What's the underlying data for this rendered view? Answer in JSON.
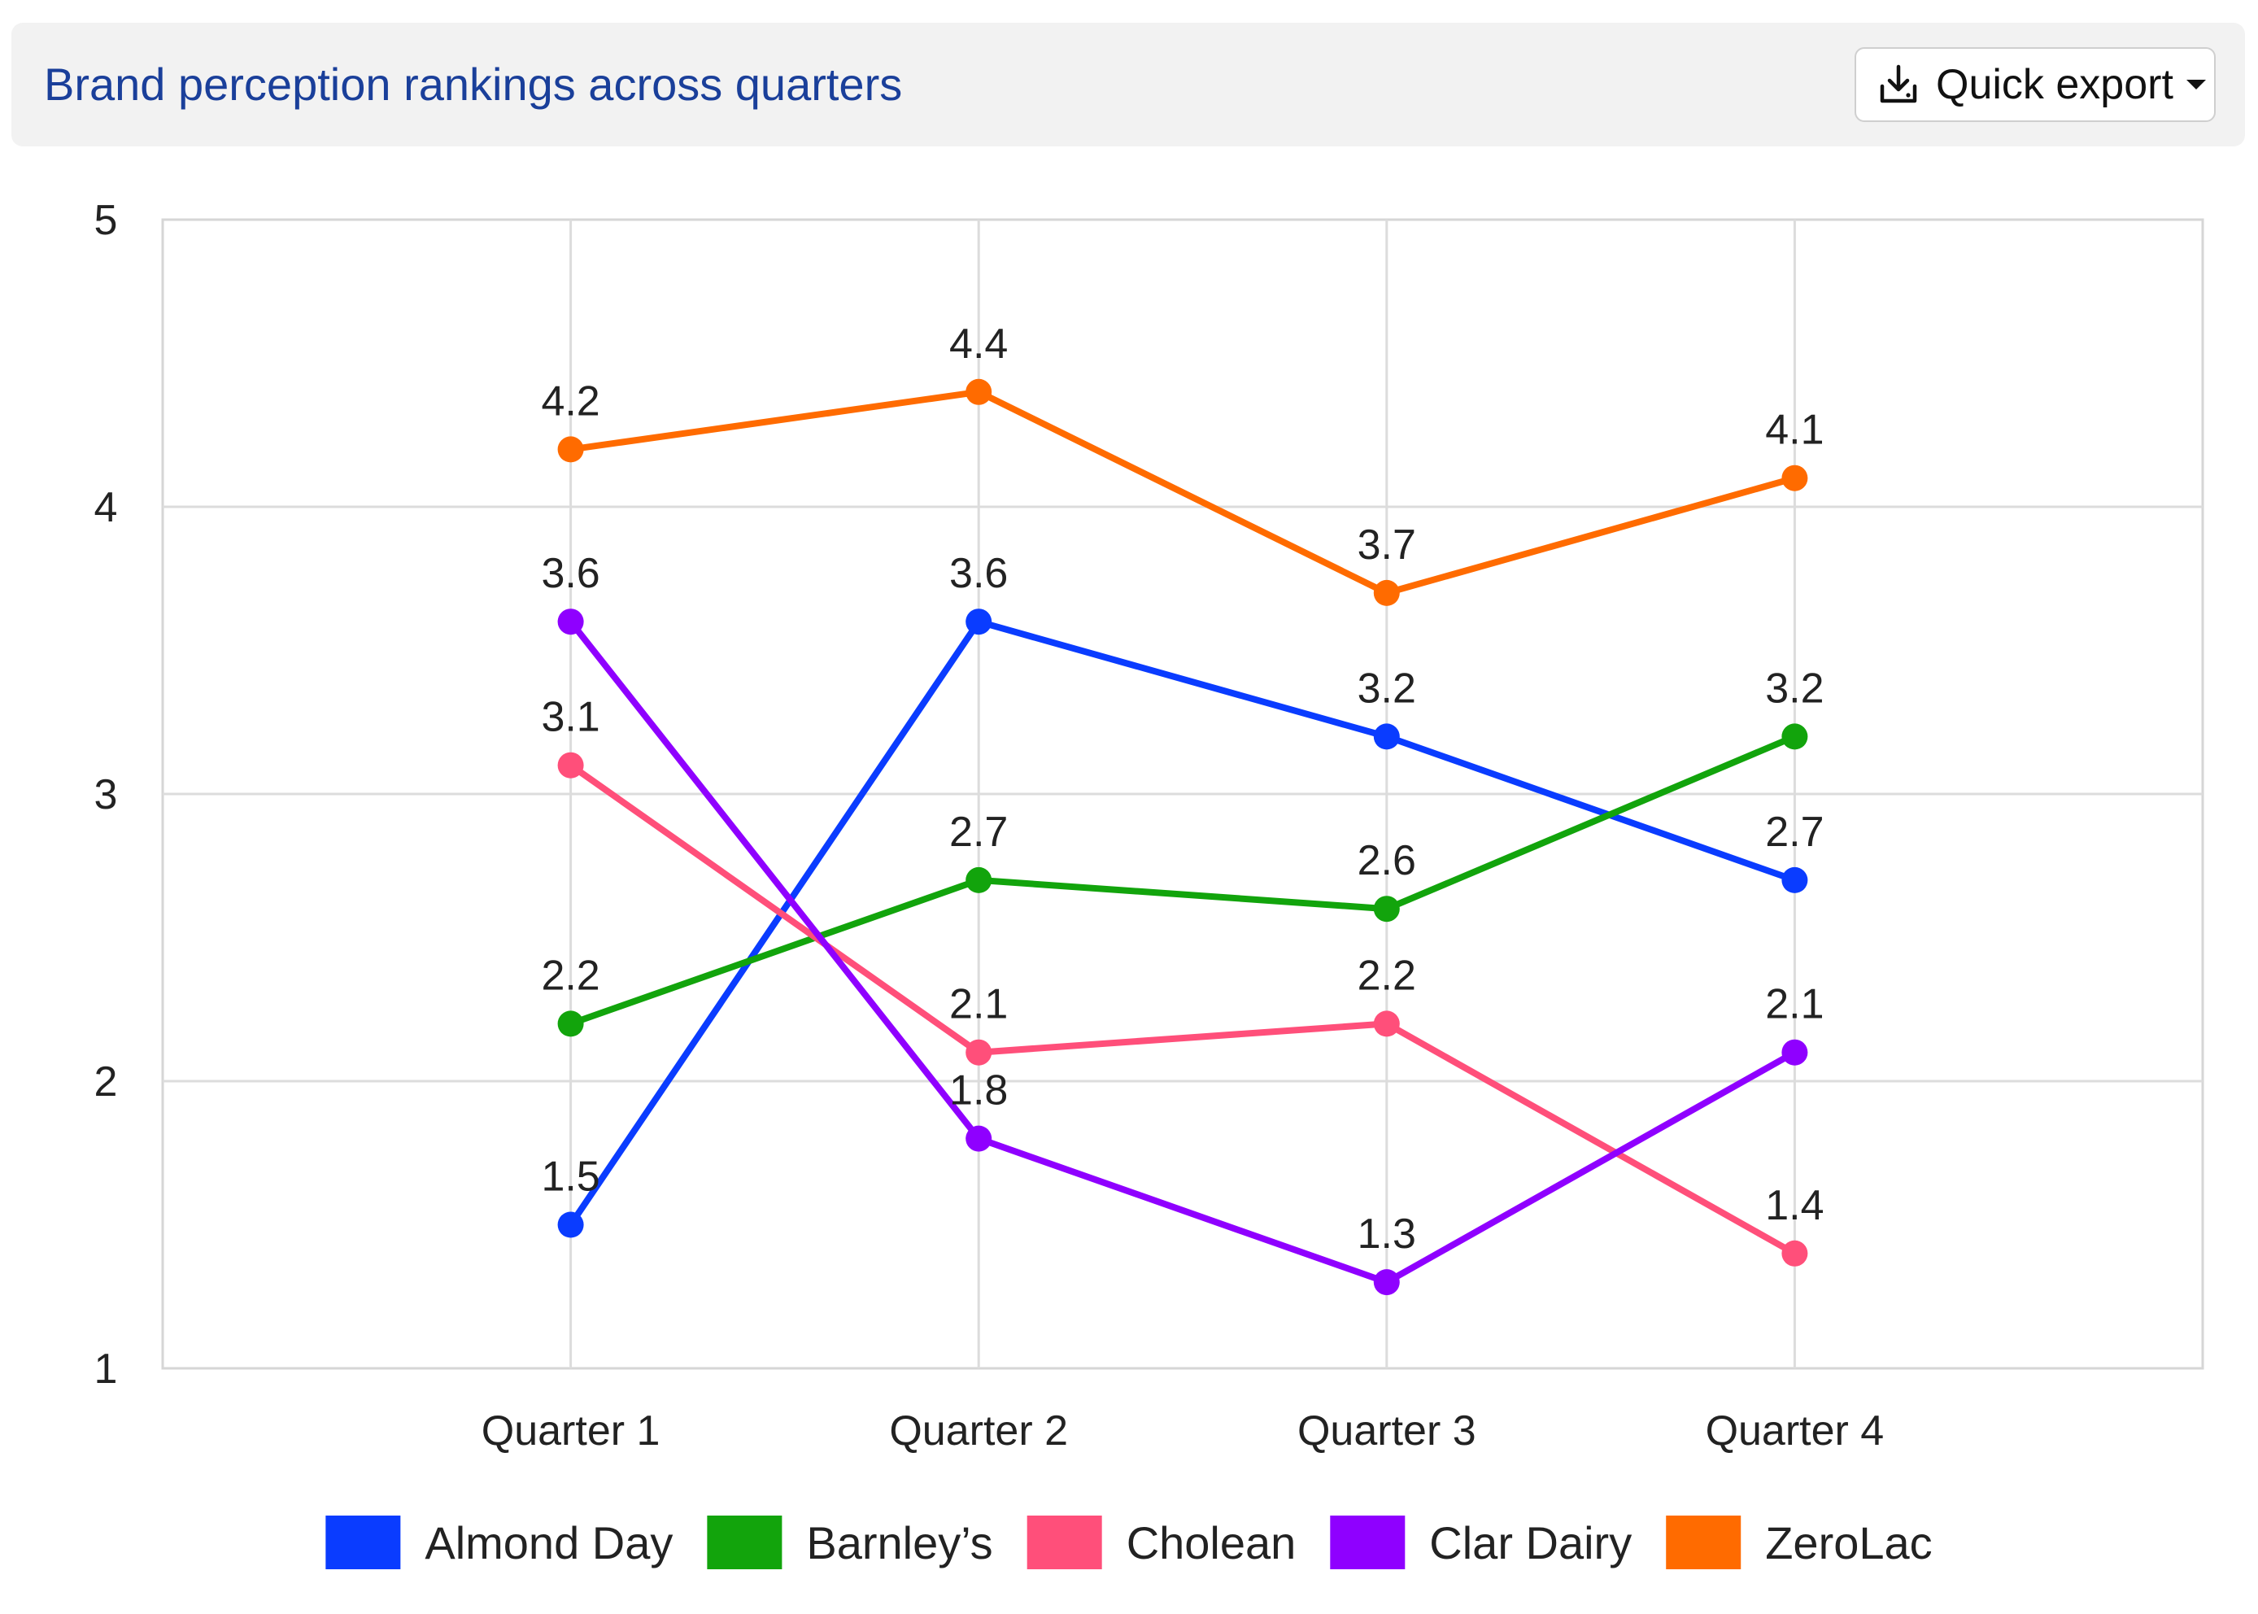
{
  "header": {
    "title": "Brand perception rankings across quarters",
    "export_label": "Quick export"
  },
  "icons": {
    "export": "download-tray-icon",
    "dropdown": "caret-down-icon"
  },
  "chart_data": {
    "type": "line",
    "title": "Brand perception rankings across quarters",
    "xlabel": "",
    "ylabel": "",
    "categories": [
      "Quarter 1",
      "Quarter 2",
      "Quarter 3",
      "Quarter 4"
    ],
    "ylim": [
      1,
      5
    ],
    "yticks": [
      "1",
      "2",
      "3",
      "4",
      "5"
    ],
    "grid": true,
    "legend_position": "bottom",
    "series": [
      {
        "name": "Almond Day",
        "color": "#0a3cff",
        "values": [
          1.5,
          3.6,
          3.2,
          2.7
        ],
        "labels": [
          "1.5",
          "3.6",
          "3.2",
          "2.7"
        ]
      },
      {
        "name": "Barnley’s",
        "color": "#12a40c",
        "values": [
          2.2,
          2.7,
          2.6,
          3.2
        ],
        "labels": [
          "2.2",
          "2.7",
          "2.6",
          "3.2"
        ]
      },
      {
        "name": "Cholean",
        "color": "#ff4f7a",
        "values": [
          3.1,
          2.1,
          2.2,
          1.4
        ],
        "labels": [
          "3.1",
          "2.1",
          "2.2",
          "1.4"
        ]
      },
      {
        "name": "Clar Dairy",
        "color": "#8f00ff",
        "values": [
          3.6,
          1.8,
          1.3,
          2.1
        ],
        "labels": [
          "3.6",
          "1.8",
          "1.3",
          "2.1"
        ]
      },
      {
        "name": "ZeroLac",
        "color": "#ff6b00",
        "values": [
          4.2,
          4.4,
          3.7,
          4.1
        ],
        "labels": [
          "4.2",
          "4.4",
          "3.7",
          "4.1"
        ]
      }
    ]
  }
}
